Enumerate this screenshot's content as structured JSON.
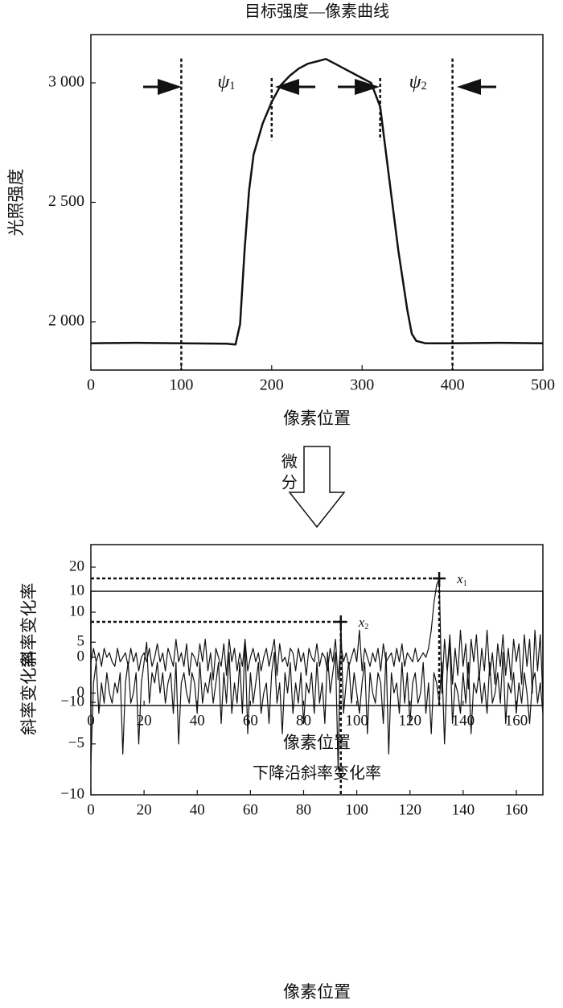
{
  "arrow_label": "微分",
  "chart_data": [
    {
      "type": "line",
      "title": "目标强度—像素曲线",
      "xlabel": "像素位置",
      "ylabel": "光照强度",
      "x": [
        0,
        50,
        100,
        150,
        160,
        165,
        170,
        175,
        180,
        190,
        200,
        210,
        220,
        230,
        240,
        250,
        260,
        270,
        280,
        290,
        300,
        310,
        320,
        330,
        340,
        350,
        355,
        360,
        370,
        400,
        450,
        500
      ],
      "series": [
        {
          "color": "#111111",
          "values": [
            1910,
            1912,
            1910,
            1908,
            1905,
            1990,
            2300,
            2550,
            2700,
            2830,
            2920,
            2990,
            3030,
            3060,
            3080,
            3090,
            3100,
            3080,
            3060,
            3040,
            3020,
            3000,
            2900,
            2600,
            2300,
            2050,
            1950,
            1920,
            1910,
            1910,
            1912,
            1910
          ]
        }
      ],
      "xlim": [
        0,
        500
      ],
      "xticks": [
        0,
        100,
        200,
        300,
        400,
        500
      ],
      "ylim": [
        1798,
        3202
      ],
      "yticks": [
        {
          "value": 2000,
          "label": "2 000"
        },
        {
          "value": 2500,
          "label": "2 500"
        },
        {
          "value": 3000,
          "label": "3 000"
        }
      ],
      "markers": [
        100,
        200,
        320,
        400
      ],
      "annotations": [
        {
          "symbol": "ψ",
          "subscript": "1"
        },
        {
          "symbol": "ψ",
          "subscript": "2"
        }
      ]
    },
    {
      "type": "line",
      "xlabel": "像素位置",
      "ylabel": "斜率变化率",
      "x": [
        0,
        1,
        2,
        3,
        4,
        5,
        6,
        7,
        8,
        9,
        10,
        11,
        12,
        13,
        14,
        15,
        16,
        17,
        18,
        19,
        20,
        21,
        22,
        23,
        24,
        25,
        26,
        27,
        28,
        29,
        30,
        31,
        32,
        33,
        34,
        35,
        36,
        37,
        38,
        39,
        40,
        41,
        42,
        43,
        44,
        45,
        46,
        47,
        48,
        49,
        50,
        51,
        52,
        53,
        54,
        55,
        56,
        57,
        58,
        59,
        60,
        61,
        62,
        63,
        64,
        65,
        66,
        67,
        68,
        69,
        70,
        71,
        72,
        73,
        74,
        75,
        76,
        77,
        78,
        79,
        80,
        81,
        82,
        83,
        84,
        85,
        86,
        87,
        88,
        89,
        90,
        91,
        92,
        93,
        94,
        95,
        96,
        97,
        98,
        99,
        100,
        101,
        102,
        103,
        104,
        105,
        106,
        107,
        108,
        109,
        110,
        111,
        112,
        113,
        114,
        115,
        116,
        117,
        118,
        119,
        120,
        121,
        122,
        123,
        124,
        125,
        126,
        127,
        128,
        129,
        130,
        131,
        132,
        133,
        134,
        135,
        136,
        137,
        138,
        139,
        140,
        141,
        142,
        143,
        144,
        145,
        146,
        147,
        148,
        149,
        150,
        151,
        152,
        153,
        154,
        155,
        156,
        157,
        158,
        159,
        160,
        161,
        162,
        163,
        164,
        165,
        166,
        167,
        168,
        169,
        170
      ],
      "series": [
        {
          "color": "#111111",
          "values": [
            -1,
            2,
            -1,
            1,
            -2,
            2,
            0,
            1,
            -1,
            -2,
            2,
            -1,
            0,
            1,
            -2,
            2,
            -1,
            1,
            -3,
            0,
            1,
            -1,
            2,
            -2,
            0,
            3,
            -1,
            1,
            -3,
            2,
            0,
            -2,
            4,
            -1,
            1,
            -2,
            3,
            -4,
            1,
            0,
            -2,
            3,
            -1,
            4,
            -3,
            1,
            -5,
            2,
            0,
            -2,
            3,
            -4,
            4,
            -1,
            2,
            -3,
            1,
            -2,
            4,
            -3,
            0,
            2,
            -1,
            1,
            -3,
            0,
            2,
            -2,
            1,
            4,
            -4,
            3,
            -1,
            0,
            -2,
            2,
            1,
            -3,
            2,
            -1,
            1,
            -4,
            2,
            0,
            -1,
            3,
            -2,
            1,
            0,
            -3,
            2,
            -1,
            4,
            -5,
            3,
            -1,
            1,
            -2,
            0,
            2,
            -1,
            6,
            -3,
            2,
            0,
            -2,
            1,
            -1,
            2,
            -3,
            3,
            -1,
            0,
            1,
            -2,
            2,
            -1,
            3,
            -2,
            1,
            0,
            -1,
            2,
            -1,
            0,
            1,
            0,
            2,
            6,
            12,
            16,
            17.5,
            -8,
            4,
            -3,
            5,
            -6,
            2,
            -4,
            6,
            -2,
            3,
            -7,
            4,
            -1,
            5,
            -5,
            2,
            -3,
            6,
            -4,
            1,
            -6,
            3,
            -2,
            5,
            -4,
            2,
            -5,
            4,
            -1,
            3,
            -6,
            5,
            -2,
            4,
            -8,
            6,
            -3,
            5,
            -9
          ]
        }
      ],
      "xlim": [
        0,
        170
      ],
      "xticks": [
        0,
        20,
        40,
        60,
        80,
        100,
        120,
        140,
        160
      ],
      "ylim": [
        -10.7,
        25
      ],
      "yticks": [
        {
          "value": -10,
          "label": "−10"
        },
        0,
        10,
        20
      ],
      "point": {
        "x": 131,
        "y": 17.5
      },
      "annotations": [
        {
          "symbol": "x",
          "subscript": "1"
        }
      ]
    },
    {
      "type": "line",
      "title": "下降沿斜率变化率",
      "xlabel": "像素位置",
      "ylabel": "斜率变化率",
      "x": [
        0,
        1,
        2,
        3,
        4,
        5,
        6,
        7,
        8,
        9,
        10,
        11,
        12,
        13,
        14,
        15,
        16,
        17,
        18,
        19,
        20,
        21,
        22,
        23,
        24,
        25,
        26,
        27,
        28,
        29,
        30,
        31,
        32,
        33,
        34,
        35,
        36,
        37,
        38,
        39,
        40,
        41,
        42,
        43,
        44,
        45,
        46,
        47,
        48,
        49,
        50,
        51,
        52,
        53,
        54,
        55,
        56,
        57,
        58,
        59,
        60,
        61,
        62,
        63,
        64,
        65,
        66,
        67,
        68,
        69,
        70,
        71,
        72,
        73,
        74,
        75,
        76,
        77,
        78,
        79,
        80,
        81,
        82,
        83,
        84,
        85,
        86,
        87,
        88,
        89,
        90,
        91,
        92,
        93,
        94,
        95,
        96,
        97,
        98,
        99,
        100,
        101,
        102,
        103,
        104,
        105,
        106,
        107,
        108,
        109,
        110,
        111,
        112,
        113,
        114,
        115,
        116,
        117,
        118,
        119,
        120,
        121,
        122,
        123,
        124,
        125,
        126,
        127,
        128,
        129,
        130,
        131,
        132,
        133,
        134,
        135,
        136,
        137,
        138,
        139,
        140,
        141,
        142,
        143,
        144,
        145,
        146,
        147,
        148,
        149,
        150,
        151,
        152,
        153,
        154,
        155,
        156,
        157,
        158,
        159,
        160,
        161,
        162,
        163,
        164,
        165,
        166,
        167,
        168,
        169,
        170
      ],
      "series": [
        {
          "color": "#111111",
          "values": [
            -7,
            1,
            3,
            -2,
            1,
            -1,
            2,
            0,
            -1,
            1,
            0,
            2,
            -6,
            1,
            3,
            -1,
            0,
            2,
            -5,
            1,
            3,
            5,
            -1,
            2,
            1,
            3,
            0,
            2,
            -1,
            1,
            2,
            -2,
            3,
            -5,
            1,
            2,
            0,
            -1,
            2,
            1,
            -2,
            3,
            -1,
            1,
            0,
            2,
            -1,
            1,
            3,
            -3,
            2,
            -1,
            4,
            -2,
            1,
            -1,
            3,
            -2,
            5,
            -4,
            2,
            -1,
            1,
            3,
            -2,
            0,
            1,
            -3,
            2,
            4,
            -1,
            1,
            -4,
            2,
            0,
            3,
            -2,
            1,
            -1,
            2,
            -3,
            1,
            0,
            2,
            -2,
            3,
            -1,
            1,
            -3,
            4,
            0,
            2,
            4,
            -7.5,
            7,
            -2,
            1,
            3,
            -1,
            2,
            0,
            -2,
            1,
            3,
            -4,
            2,
            0,
            -1,
            2,
            1,
            -3,
            4,
            -6,
            2,
            0,
            1,
            -2,
            3,
            -1,
            2,
            -3,
            1,
            2,
            -1,
            0,
            3,
            -2,
            1,
            -4,
            2,
            1,
            -1,
            3,
            -5,
            2,
            5,
            -3,
            1,
            0,
            -2,
            2,
            -1,
            3,
            -4,
            1,
            0,
            2,
            -1,
            1,
            -2,
            3,
            -1,
            0,
            2,
            -1,
            4,
            -3,
            1,
            0,
            2,
            -2,
            1,
            -1,
            2,
            0,
            -3,
            1,
            2,
            -1,
            1,
            -2
          ]
        }
      ],
      "xlim": [
        0,
        170
      ],
      "xticks": [
        0,
        20,
        40,
        60,
        80,
        100,
        120,
        140,
        160
      ],
      "ylim": [
        -10,
        10
      ],
      "yticks": [
        {
          "value": -10,
          "label": "−10"
        },
        {
          "value": -5,
          "label": "−5"
        },
        0,
        5,
        10
      ],
      "point": {
        "x": 94,
        "y": 7
      },
      "annotations": [
        {
          "symbol": "x",
          "subscript": "2"
        }
      ]
    }
  ]
}
